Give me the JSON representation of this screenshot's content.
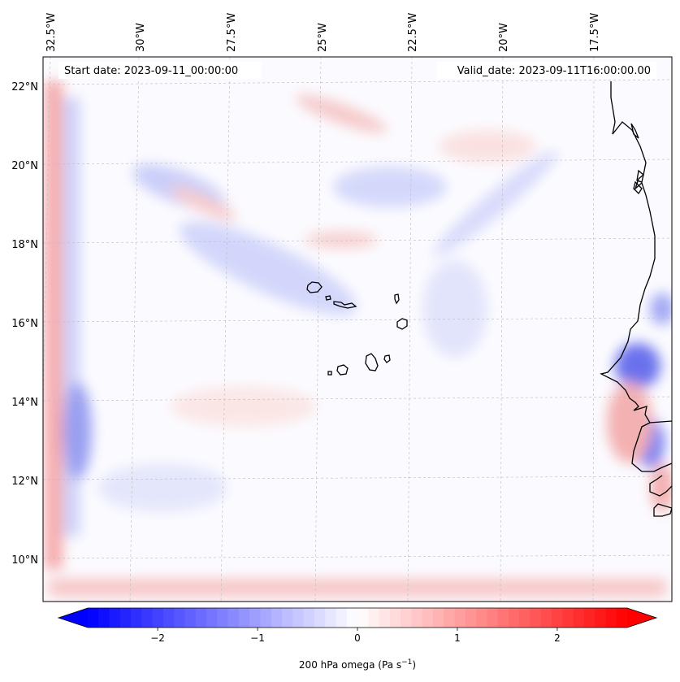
{
  "map": {
    "start_date_label": "Start date: 2023-09-11_00:00:00",
    "valid_date_label": "Valid_date: 2023-09-11T16:00:00.00",
    "lon_labels": [
      "32.5°W",
      "30°W",
      "27.5°W",
      "25°W",
      "22.5°W",
      "20°W",
      "17.5°W"
    ],
    "lat_labels": [
      "22°N",
      "20°N",
      "18°N",
      "16°N",
      "14°N",
      "12°N",
      "10°N"
    ],
    "gridlines": true
  },
  "colorbar": {
    "title_base": "200 hPa omega (Pa s",
    "title_sup": "−1",
    "title_close": ")",
    "tick_labels": [
      "−2",
      "−1",
      "0",
      "1",
      "2"
    ],
    "tick_values": [
      -2,
      -1,
      0,
      1,
      2
    ],
    "range": [
      -2.7,
      2.7
    ],
    "extend": "both",
    "colors": {
      "negative": "#0000ff",
      "zero": "#ffffff",
      "positive": "#ff0000"
    }
  },
  "colors": {
    "coastline": "#000000",
    "gridline": "#bbbbbb"
  },
  "features": [
    {
      "name": "Cape Verde islands",
      "type": "island-group"
    },
    {
      "name": "West African coastline",
      "type": "coastline"
    }
  ]
}
